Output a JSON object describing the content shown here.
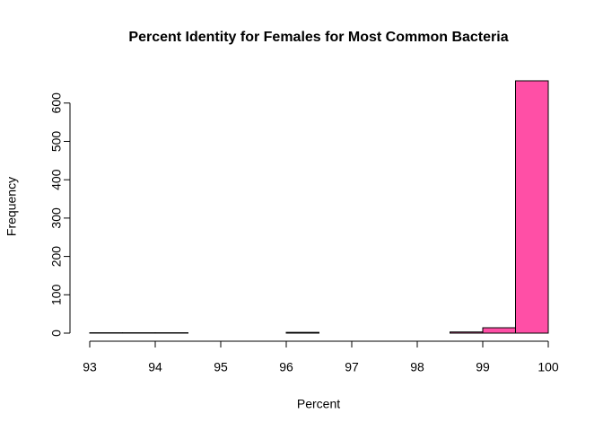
{
  "chart_data": {
    "type": "histogram",
    "title": "Percent Identity for Females for Most Common Bacteria",
    "x_label": "Percent",
    "y_label": "Frequency",
    "bins": [
      93,
      93.5,
      94,
      94.5,
      95,
      95.5,
      96,
      96.5,
      97,
      97.5,
      98,
      98.5,
      99,
      99.5,
      100
    ],
    "values": [
      1,
      1,
      1,
      0,
      0,
      0,
      2,
      0,
      0,
      0,
      0,
      3,
      14,
      658
    ],
    "color": "#ff4fa6",
    "xlim": [
      93,
      100
    ],
    "xticks": [
      93,
      94,
      95,
      96,
      97,
      98,
      99,
      100
    ],
    "ylim": [
      0,
      658
    ],
    "yticks": [
      0,
      100,
      200,
      300,
      400,
      500,
      600
    ],
    "grid": false
  }
}
